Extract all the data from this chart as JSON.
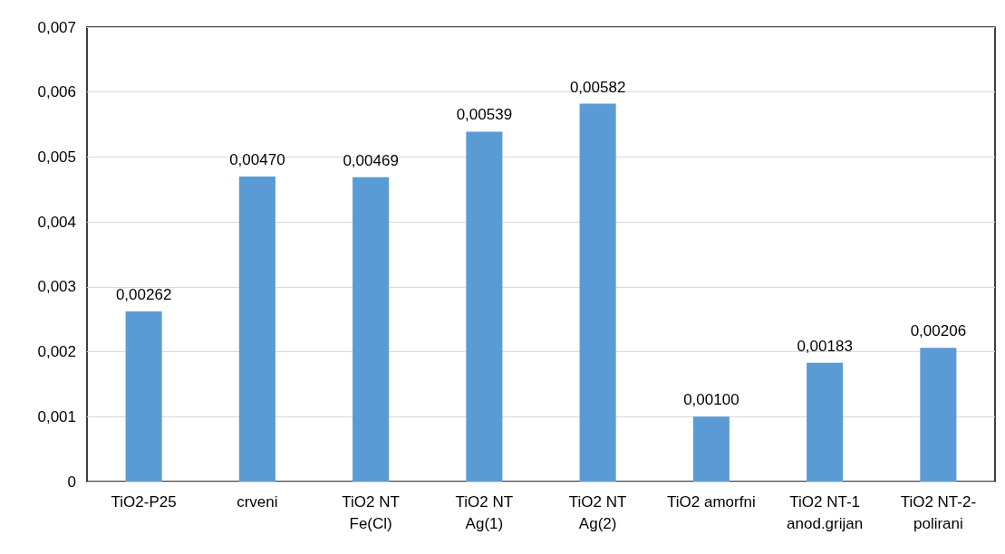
{
  "chart_data": {
    "type": "bar",
    "categories": [
      "TiO2-P25",
      "crveni",
      "TiO2 NT\nFe(Cl)",
      "TiO2 NT\nAg(1)",
      "TiO2 NT\nAg(2)",
      "TiO2 amorfni",
      "TiO2 NT-1\nanod.grijan",
      "TiO2 NT-2-\npolirani"
    ],
    "values": [
      0.00262,
      0.0047,
      0.00469,
      0.00539,
      0.00582,
      0.001,
      0.00183,
      0.00206
    ],
    "value_labels": [
      "0,00262",
      "0,00470",
      "0,00469",
      "0,00539",
      "0,00582",
      "0,00100",
      "0,00183",
      "0,00206"
    ],
    "color": "#5b9bd5",
    "ylim": [
      0,
      0.007
    ],
    "yticks": [
      0,
      {
        "value": 0.001,
        "label": "0,001"
      },
      {
        "value": 0.002,
        "label": "0,002"
      },
      {
        "value": 0.003,
        "label": "0,003"
      },
      {
        "value": 0.004,
        "label": "0,004"
      },
      {
        "value": 0.005,
        "label": "0,005"
      },
      {
        "value": 0.006,
        "label": "0,006"
      },
      {
        "value": 0.007,
        "label": "0,007"
      }
    ],
    "grid": true
  }
}
